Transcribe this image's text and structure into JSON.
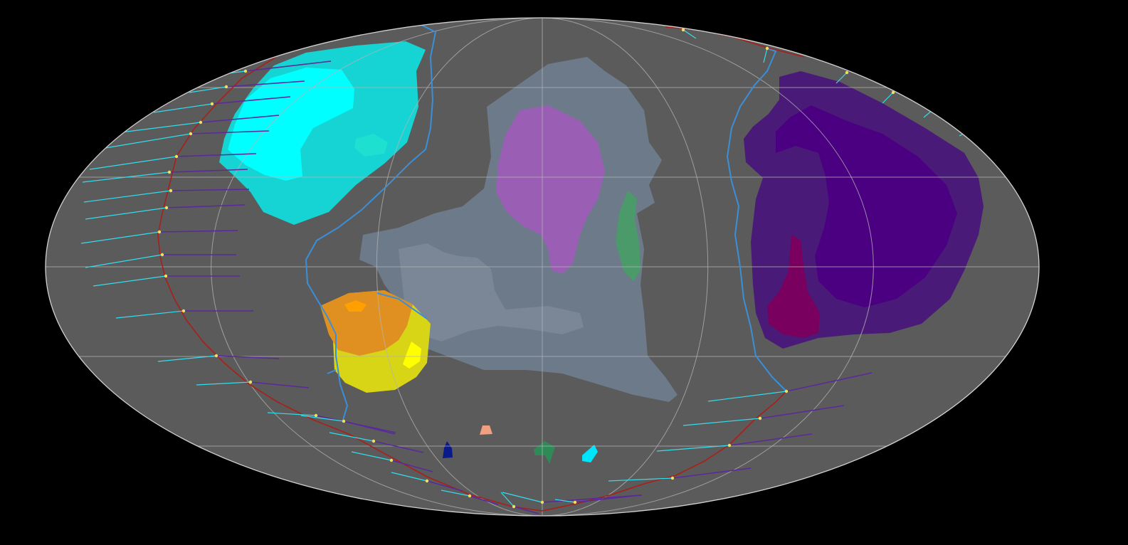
{
  "map": {
    "projection": "mollweide",
    "background_color": "#000000",
    "ocean_color": "#5b5b5b",
    "graticule_color": "#b4b4b4",
    "plate_boundary_color": "#a8201a",
    "ridge_color": "#3a8fd8",
    "velocity_colors": {
      "past": "#33ddee",
      "future": "#5a2a9a"
    },
    "plates": [
      {
        "id": "cyan-plate",
        "outer": "#16d4d4",
        "inner": "#00ffff"
      },
      {
        "id": "grey-plate",
        "outer": "#6c7a8a",
        "inner": "#7b8797"
      },
      {
        "id": "orchid-plate",
        "outer": "#9a5fb4"
      },
      {
        "id": "green-sliver",
        "outer": "#4a9a6a"
      },
      {
        "id": "purple-plate",
        "outer": "#4a1a78",
        "inner": "#4b0082"
      },
      {
        "id": "magenta-patch",
        "outer": "#7a0060"
      },
      {
        "id": "gold-plate",
        "outer": "#d8d416",
        "inner": "#e09020",
        "highlight": "#ffff00"
      },
      {
        "id": "navy-fragment",
        "outer": "#0a1a8a"
      },
      {
        "id": "salmon-fragment",
        "outer": "#f0a080"
      },
      {
        "id": "sea-green-fragment",
        "outer": "#2e8b57"
      },
      {
        "id": "cyan-fragment",
        "outer": "#00e5ff"
      }
    ]
  }
}
